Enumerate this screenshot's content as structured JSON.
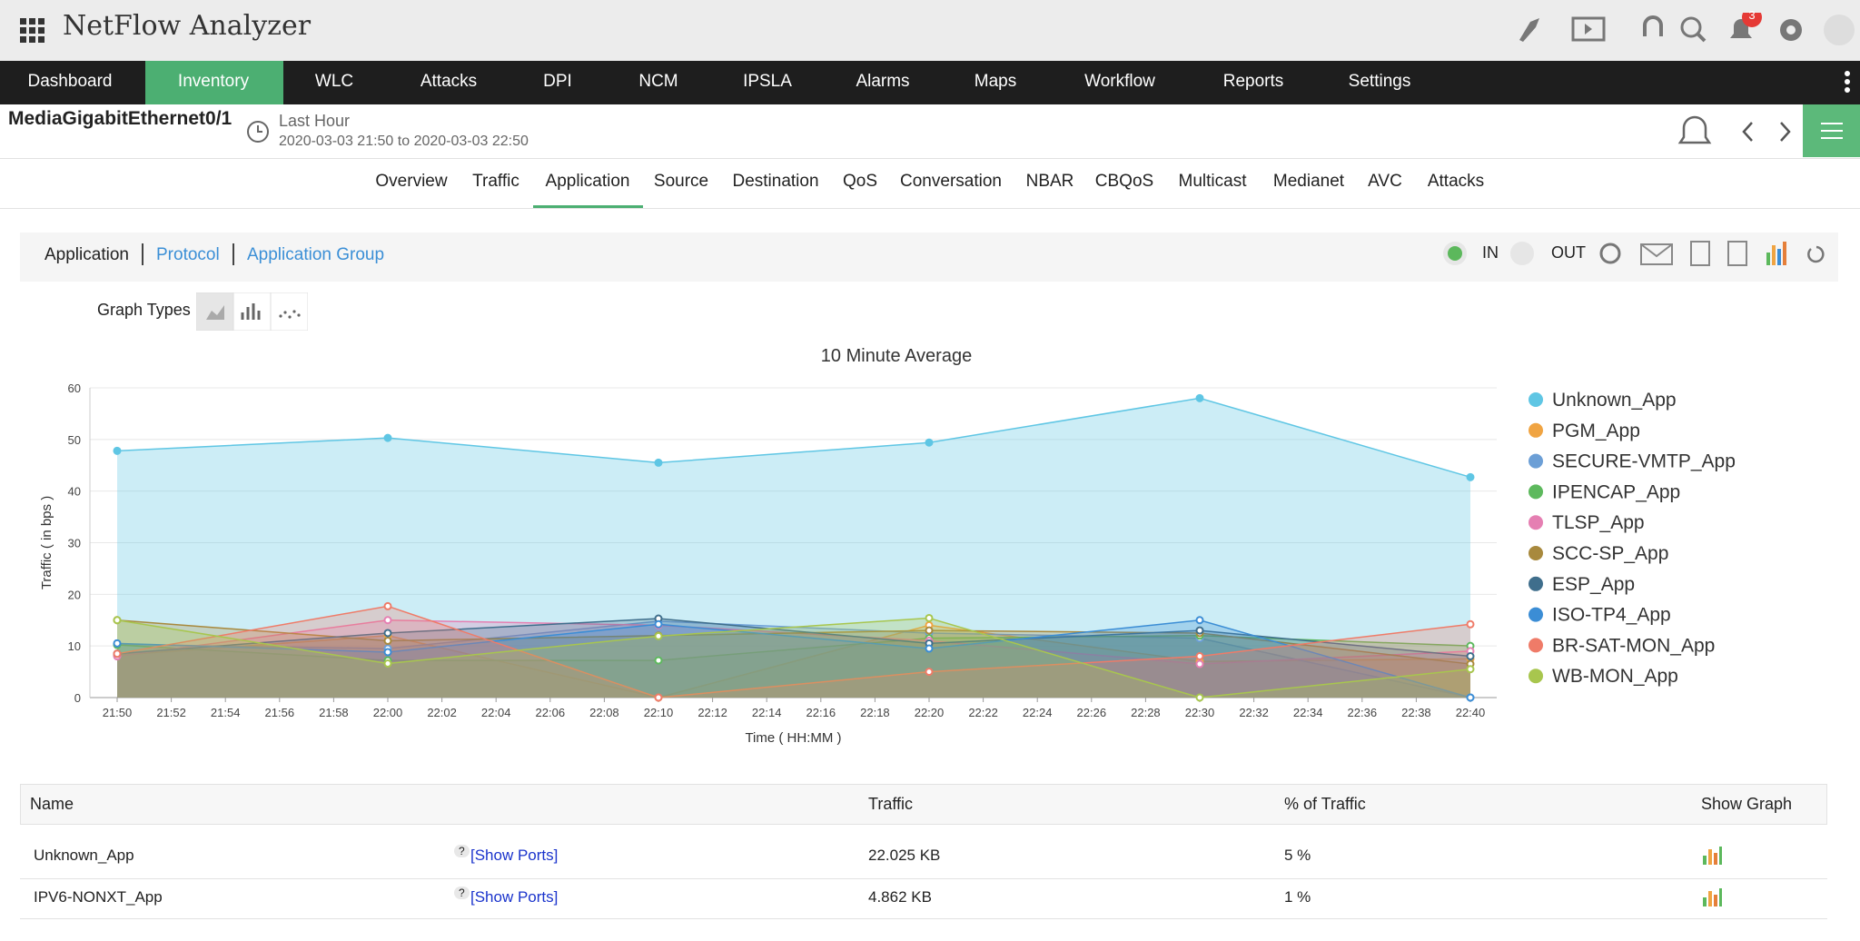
{
  "header": {
    "app_title": "NetFlow Analyzer",
    "notification_count": "3"
  },
  "nav": [
    "Dashboard",
    "Inventory",
    "WLC",
    "Attacks",
    "DPI",
    "NCM",
    "IPSLA",
    "Alarms",
    "Maps",
    "Workflow",
    "Reports",
    "Settings"
  ],
  "device": {
    "name": "MediaGigabitEthernet0/1",
    "period": "Last Hour",
    "range": "2020-03-03 21:50 to 2020-03-03 22:50"
  },
  "subtabs": [
    "Overview",
    "Traffic",
    "Application",
    "Source",
    "Destination",
    "QoS",
    "Conversation",
    "NBAR",
    "CBQoS",
    "Multicast",
    "Medianet",
    "AVC",
    "Attacks"
  ],
  "toolbar": {
    "views": [
      "Application",
      "Protocol",
      "Application Group"
    ],
    "in": "IN",
    "out": "OUT",
    "graph_types": "Graph Types"
  },
  "chart_data": {
    "type": "area",
    "title": "10 Minute Average",
    "y_label": "Traffic ( in bps )",
    "x_label": "Time ( HH:MM )",
    "x": [
      "21:50",
      "22:00",
      "22:10",
      "22:20",
      "22:30",
      "22:40"
    ],
    "xticks": [
      "21:50",
      "21:52",
      "21:54",
      "21:56",
      "21:58",
      "22:00",
      "22:02",
      "22:04",
      "22:06",
      "22:08",
      "22:10",
      "22:12",
      "22:14",
      "22:16",
      "22:18",
      "22:20",
      "22:22",
      "22:24",
      "22:26",
      "22:28",
      "22:30",
      "22:32",
      "22:34",
      "22:36",
      "22:38",
      "22:40"
    ],
    "ylim": [
      0,
      60
    ],
    "yticks": [
      0,
      10,
      20,
      30,
      40,
      50,
      60
    ],
    "grid": true,
    "legend": "right",
    "series": [
      {
        "name": "Unknown_App",
        "color": "#5fc6e4",
        "values": [
          47.8,
          50.3,
          45.5,
          49.4,
          58,
          42.7
        ]
      },
      {
        "name": "PGM_App",
        "color": "#f0a442",
        "values": [
          8.2,
          12,
          0,
          14,
          7,
          7.5
        ]
      },
      {
        "name": "SECURE-VMTP_App",
        "color": "#6c9fd6",
        "values": [
          10.3,
          9.5,
          14.8,
          12.5,
          11.5,
          0
        ]
      },
      {
        "name": "IPENCAP_App",
        "color": "#5db95d",
        "values": [
          10.2,
          7.2,
          7.2,
          11.5,
          12,
          10
        ]
      },
      {
        "name": "TLSP_App",
        "color": "#e57fb2",
        "values": [
          8,
          15,
          14,
          11,
          6.5,
          9
        ]
      },
      {
        "name": "SCC-SP_App",
        "color": "#a8893d",
        "values": [
          15,
          11,
          12,
          13,
          12.5,
          6.5
        ]
      },
      {
        "name": "ESP_App",
        "color": "#3f6e8c",
        "values": [
          8.5,
          12.5,
          15.3,
          10.5,
          13,
          8
        ]
      },
      {
        "name": "ISO-TP4_App",
        "color": "#3b8dd5",
        "values": [
          10.5,
          8.8,
          14.2,
          9.5,
          15,
          0
        ]
      },
      {
        "name": "BR-SAT-MON_App",
        "color": "#ef7b68",
        "values": [
          8.5,
          17.7,
          0,
          5,
          8,
          14.2
        ]
      },
      {
        "name": "WB-MON_App",
        "color": "#a8c64e",
        "values": [
          15,
          6.6,
          11.9,
          15.4,
          0,
          5.5
        ]
      }
    ]
  },
  "table": {
    "headers": [
      "Name",
      "Traffic",
      "% of Traffic",
      "Show Graph"
    ],
    "rows": [
      [
        "Unknown_App",
        "?",
        "[Show Ports]",
        "22.025 KB",
        "5 %"
      ],
      [
        "IPV6-NONXT_App",
        "?",
        "[Show Ports]",
        "4.862 KB",
        "1 %"
      ]
    ]
  }
}
